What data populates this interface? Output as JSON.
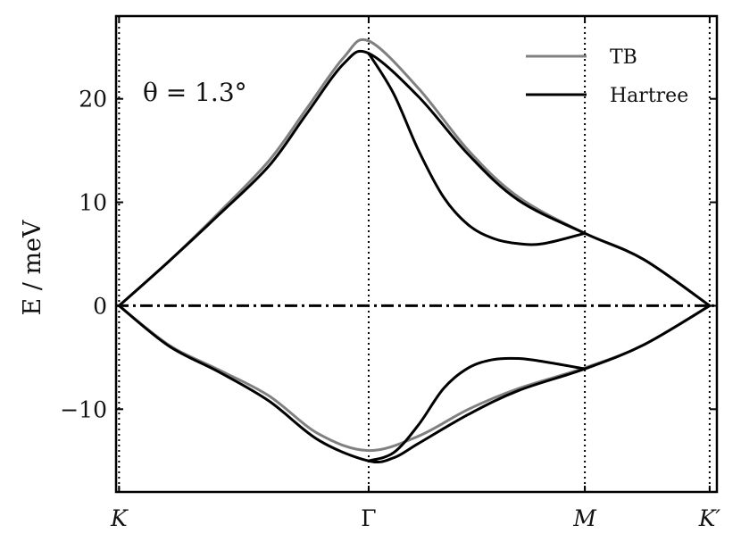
{
  "chart_data": {
    "type": "line",
    "ylabel": "E / meV",
    "annotation": "θ = 1.3°",
    "ylim": [
      -18,
      28
    ],
    "yticks": [
      -10,
      0,
      10,
      20
    ],
    "ytick_labels": [
      "−10",
      "0",
      "10",
      "20"
    ],
    "x_ticks": [
      {
        "label": "K",
        "pos": 0.0
      },
      {
        "label": "Γ",
        "pos": 1.0
      },
      {
        "label": "M",
        "pos": 1.866
      },
      {
        "label": "K′",
        "pos": 2.366
      }
    ],
    "xlim": [
      -0.012,
      2.395
    ],
    "zero_line": {
      "y": 0,
      "style": "dash-dot",
      "color": "#000000"
    },
    "legend": {
      "placement": "top-right",
      "entries": [
        "TB",
        "Hartree"
      ]
    },
    "series": [
      {
        "name": "TB",
        "color": "#808080",
        "band": "upper",
        "x": [
          0,
          0.2,
          0.4,
          0.6,
          0.75,
          0.9,
          1.0,
          1.2,
          1.4,
          1.6,
          1.866,
          2.1,
          2.366
        ],
        "y": [
          0,
          4.3,
          9.0,
          14.0,
          19.0,
          24.0,
          25.6,
          21.0,
          15.0,
          10.5,
          7.0,
          4.5,
          0
        ]
      },
      {
        "name": "TB",
        "color": "#808080",
        "band": "lower",
        "x": [
          0,
          0.2,
          0.4,
          0.6,
          0.8,
          1.0,
          1.2,
          1.4,
          1.6,
          1.866,
          2.1,
          2.366
        ],
        "y": [
          0,
          -3.8,
          -6.2,
          -8.7,
          -12.4,
          -14.0,
          -12.6,
          -10.0,
          -8.0,
          -6.0,
          -3.8,
          0
        ]
      },
      {
        "name": "Hartree",
        "color": "#000000",
        "band": "upper-1",
        "x": [
          0,
          0.2,
          0.4,
          0.6,
          0.75,
          0.9,
          1.0,
          1.2,
          1.4,
          1.6,
          1.866,
          2.1,
          2.366
        ],
        "y": [
          0,
          4.3,
          8.8,
          13.5,
          18.5,
          23.4,
          24.4,
          20.2,
          14.6,
          10.2,
          7.0,
          4.5,
          0
        ]
      },
      {
        "name": "Hartree",
        "color": "#000000",
        "band": "upper-2",
        "x": [
          1.0,
          1.1,
          1.2,
          1.3,
          1.4,
          1.5,
          1.6,
          1.7,
          1.866
        ],
        "y": [
          24.4,
          20.5,
          15.0,
          10.5,
          7.8,
          6.5,
          6.0,
          6.0,
          7.0
        ]
      },
      {
        "name": "Hartree",
        "color": "#000000",
        "band": "lower-1",
        "x": [
          0,
          0.2,
          0.4,
          0.6,
          0.8,
          1.0,
          1.1,
          1.2,
          1.4,
          1.6,
          1.866,
          2.1,
          2.366
        ],
        "y": [
          0,
          -3.9,
          -6.4,
          -9.2,
          -13.0,
          -15.0,
          -14.7,
          -13.3,
          -10.5,
          -8.2,
          -6.1,
          -3.8,
          0
        ]
      },
      {
        "name": "Hartree",
        "color": "#000000",
        "band": "lower-2",
        "x": [
          1.0,
          1.1,
          1.2,
          1.3,
          1.4,
          1.5,
          1.6,
          1.7,
          1.866
        ],
        "y": [
          -15.0,
          -14.2,
          -11.5,
          -8.0,
          -6.0,
          -5.2,
          -5.1,
          -5.4,
          -6.1
        ]
      }
    ]
  }
}
